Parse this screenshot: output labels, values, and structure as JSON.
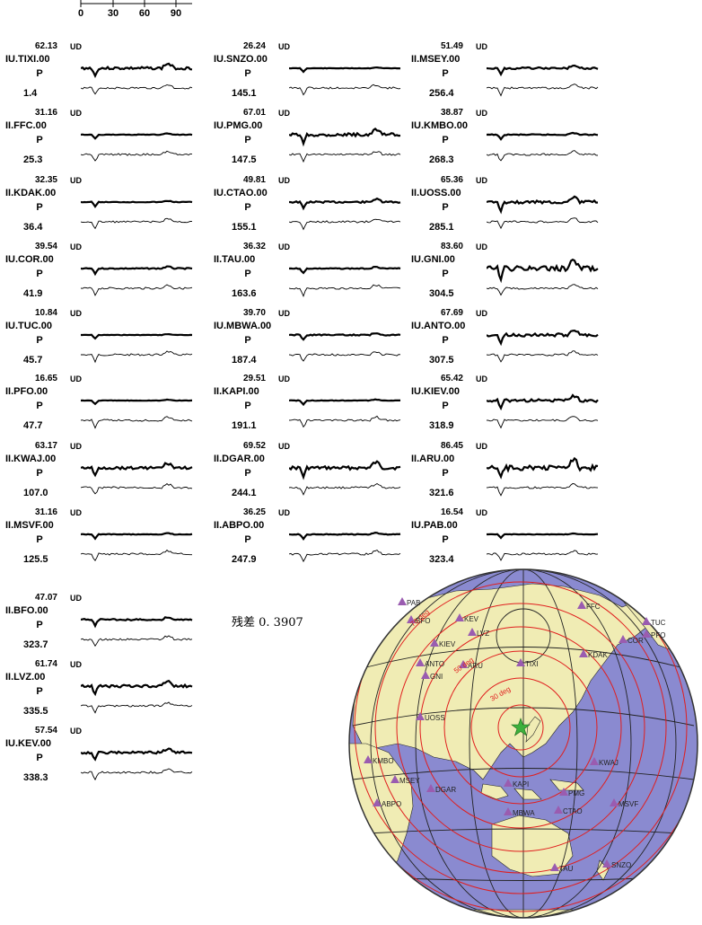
{
  "time_axis": {
    "ticks": [
      "0",
      "30",
      "60",
      "90"
    ]
  },
  "unit": "UD",
  "phase": "P",
  "residual_label": "残差 0. 3907",
  "stations": [
    {
      "amp": "62.13",
      "name": "IU.TIXI.00",
      "az": "1.4"
    },
    {
      "amp": "31.16",
      "name": "II.FFC.00",
      "az": "25.3"
    },
    {
      "amp": "32.35",
      "name": "II.KDAK.00",
      "az": "36.4"
    },
    {
      "amp": "39.54",
      "name": "IU.COR.00",
      "az": "41.9"
    },
    {
      "amp": "10.84",
      "name": "IU.TUC.00",
      "az": "45.7"
    },
    {
      "amp": "16.65",
      "name": "II.PFO.00",
      "az": "47.7"
    },
    {
      "amp": "63.17",
      "name": "II.KWAJ.00",
      "az": "107.0"
    },
    {
      "amp": "31.16",
      "name": "II.MSVF.00",
      "az": "125.5"
    },
    {
      "amp": "26.24",
      "name": "IU.SNZO.00",
      "az": "145.1"
    },
    {
      "amp": "67.01",
      "name": "IU.PMG.00",
      "az": "147.5"
    },
    {
      "amp": "49.81",
      "name": "IU.CTAO.00",
      "az": "155.1"
    },
    {
      "amp": "36.32",
      "name": "II.TAU.00",
      "az": "163.6"
    },
    {
      "amp": "39.70",
      "name": "IU.MBWA.00",
      "az": "187.4"
    },
    {
      "amp": "29.51",
      "name": "II.KAPI.00",
      "az": "191.1"
    },
    {
      "amp": "69.52",
      "name": "II.DGAR.00",
      "az": "244.1"
    },
    {
      "amp": "36.25",
      "name": "II.ABPO.00",
      "az": "247.9"
    },
    {
      "amp": "51.49",
      "name": "II.MSEY.00",
      "az": "256.4"
    },
    {
      "amp": "38.87",
      "name": "IU.KMBO.00",
      "az": "268.3"
    },
    {
      "amp": "65.36",
      "name": "II.UOSS.00",
      "az": "285.1"
    },
    {
      "amp": "83.60",
      "name": "IU.GNI.00",
      "az": "304.5"
    },
    {
      "amp": "67.69",
      "name": "IU.ANTO.00",
      "az": "307.5"
    },
    {
      "amp": "65.42",
      "name": "IU.KIEV.00",
      "az": "318.9"
    },
    {
      "amp": "86.45",
      "name": "II.ARU.00",
      "az": "321.6"
    },
    {
      "amp": "16.54",
      "name": "IU.PAB.00",
      "az": "323.4"
    },
    {
      "amp": "47.07",
      "name": "II.BFO.00",
      "az": "323.7"
    },
    {
      "amp": "61.74",
      "name": "II.LVZ.00",
      "az": "335.5"
    },
    {
      "amp": "57.54",
      "name": "IU.KEV.00",
      "az": "338.3"
    }
  ],
  "map": {
    "colors": {
      "ocean": "#8a8ad0",
      "land": "#f0ecb4",
      "circle": "#e01e1e",
      "grid": "#222222",
      "marker": "#9a5cb0",
      "epicenter": "#3db03d"
    },
    "distance_labels": [
      "30 deg",
      "50 deg",
      "70 deg"
    ],
    "station_labels": [
      "PAB",
      "BFO",
      "KEV",
      "LVZ",
      "KIEV",
      "ANTO",
      "ARU",
      "GNI",
      "TIXI",
      "UOSS",
      "KMBO",
      "MSEY",
      "DGAR",
      "ABPO",
      "KAPI",
      "MBWA",
      "CTAO",
      "PMG",
      "TAU",
      "SNZO",
      "KWAJ",
      "MSVF",
      "FFC",
      "COR",
      "TUC",
      "PFO",
      "KDAK"
    ]
  }
}
